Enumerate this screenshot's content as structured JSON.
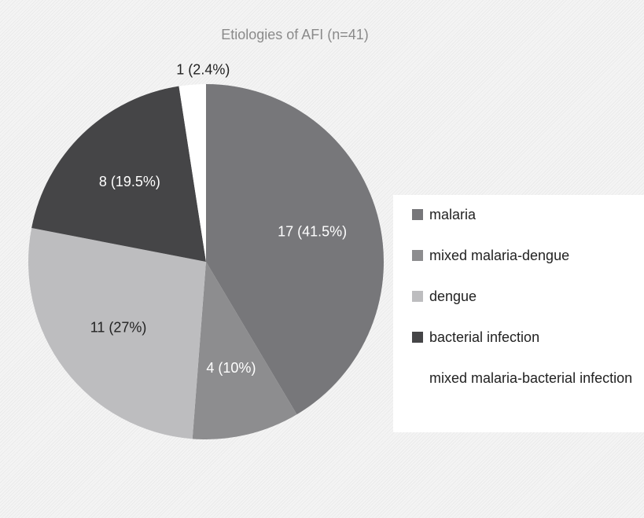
{
  "chart_data": {
    "type": "pie",
    "title": "Etiologies of AFI (n=41)",
    "categories": [
      "malaria",
      "mixed malaria-dengue",
      "dengue",
      "bacterial infection",
      "mixed malaria-bacterial infection"
    ],
    "values": [
      17,
      4,
      11,
      8,
      1
    ],
    "value_labels": [
      "17 (41.5%)",
      "4 (10%)",
      "11 (27%)",
      "8 (19.5%)",
      "1 (2.4%)"
    ],
    "colors": [
      "#77777a",
      "#8d8d8f",
      "#bdbdbf",
      "#454547",
      "#ffffff"
    ],
    "legend": "right"
  }
}
